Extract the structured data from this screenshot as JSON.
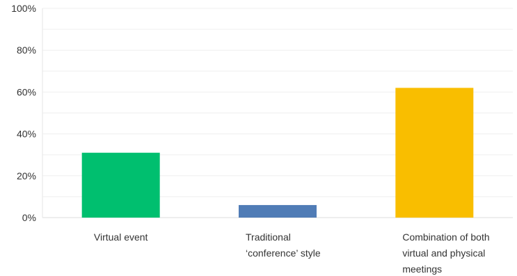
{
  "chart_data": {
    "type": "bar",
    "title": "",
    "xlabel": "",
    "ylabel": "",
    "ylim": [
      0,
      100
    ],
    "y_ticks": [
      "0%",
      "20%",
      "40%",
      "60%",
      "80%",
      "100%"
    ],
    "y_tick_values": [
      0,
      20,
      40,
      60,
      80,
      100
    ],
    "grid": true,
    "categories": [
      [
        "Virtual event"
      ],
      [
        "Traditional",
        "‘conference’ style"
      ],
      [
        "Combination of both",
        "virtual and physical",
        "meetings"
      ]
    ],
    "values": [
      31,
      6,
      62
    ],
    "colors": [
      "#00bf6f",
      "#507cb6",
      "#f9be00"
    ]
  }
}
